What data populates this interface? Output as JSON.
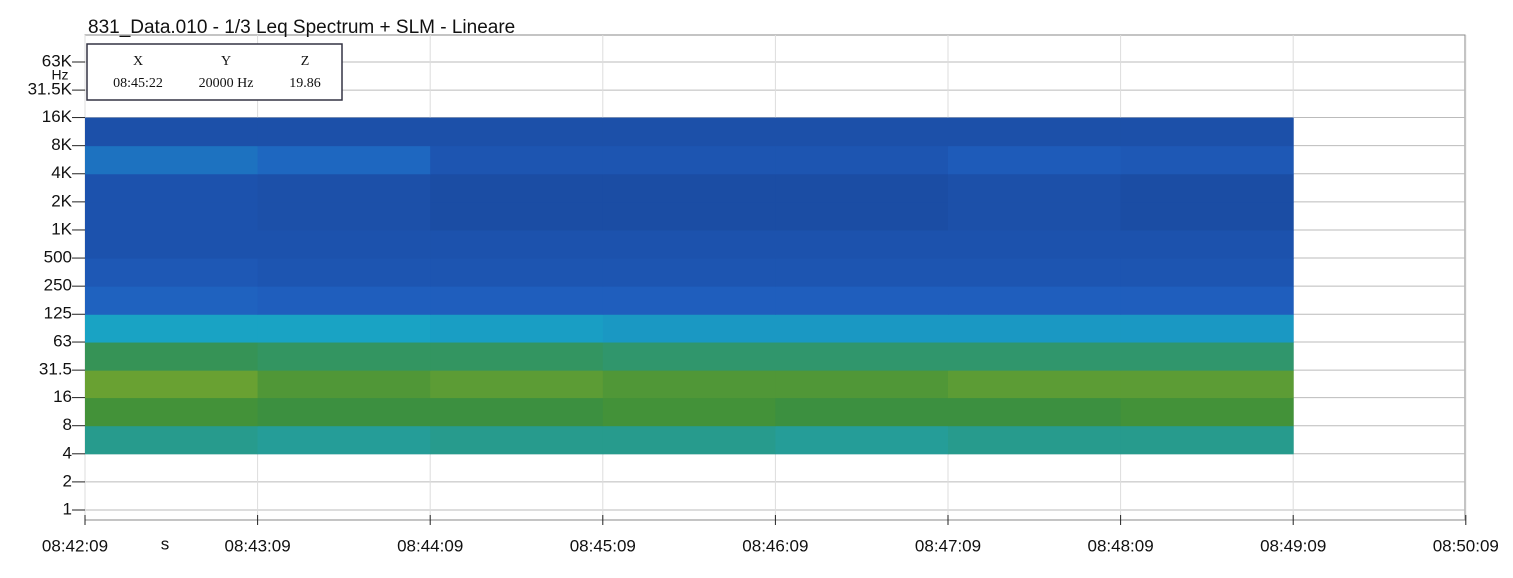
{
  "chart_data": {
    "type": "heatmap",
    "title": "831_Data.010 - 1/3 Leq Spectrum + SLM - Lineare",
    "x_label": "s",
    "y_label": "Hz",
    "x": [
      "08:42:09",
      "08:43:09",
      "08:44:09",
      "08:45:09",
      "08:46:09",
      "08:47:09",
      "08:48:09",
      "08:49:09",
      "08:50:09"
    ],
    "log_y": true,
    "ylim": [
      1,
      63000
    ],
    "yticks": [
      1,
      2,
      4,
      8,
      16,
      31.5,
      63,
      125,
      250,
      500,
      {
        "value": 1000,
        "label": "1K"
      },
      {
        "value": 2000,
        "label": "2K"
      },
      {
        "value": 4000,
        "label": "4K"
      },
      {
        "value": 8000,
        "label": "8K"
      },
      {
        "value": 16000,
        "label": "16K"
      },
      {
        "value": 31500,
        "label": "31.5K"
      },
      {
        "value": 63000,
        "label": "63K"
      }
    ],
    "grid": true,
    "y_bins": [
      4,
      8,
      16,
      31.5,
      63,
      125,
      250,
      500,
      1000,
      2000,
      4000,
      8000,
      16000
    ],
    "zlim": [
      15,
      65
    ],
    "colormap": [
      "#183c8c",
      "#1f5fbf",
      "#19a3c4",
      "#3d8f3a",
      "#d9cf1f"
    ],
    "z": [
      [
        45,
        44,
        45,
        45,
        44,
        45,
        45,
        null
      ],
      [
        53,
        52,
        52,
        53,
        52,
        52,
        53,
        null
      ],
      [
        56,
        54,
        55,
        54,
        54,
        55,
        55,
        null
      ],
      [
        50,
        49,
        49,
        48,
        48,
        48,
        48,
        null
      ],
      [
        40,
        40,
        39,
        38,
        38,
        38,
        38,
        null
      ],
      [
        28,
        27,
        27,
        27,
        27,
        27,
        27,
        null
      ],
      [
        25,
        24,
        24,
        24,
        24,
        24,
        24,
        null
      ],
      [
        23,
        23,
        23,
        23,
        23,
        23,
        23,
        null
      ],
      [
        23,
        22,
        21,
        21,
        21,
        22,
        21,
        null
      ],
      [
        23,
        22,
        21,
        21,
        21,
        22,
        21,
        null
      ],
      [
        31,
        29,
        24,
        24,
        24,
        26,
        25,
        null
      ],
      [
        22,
        22,
        22,
        22,
        22,
        22,
        22,
        null
      ]
    ],
    "readout": {
      "headers": [
        "X",
        "Y",
        "Z"
      ],
      "values": [
        "08:45:22",
        "20000 Hz",
        "19.86"
      ]
    }
  }
}
